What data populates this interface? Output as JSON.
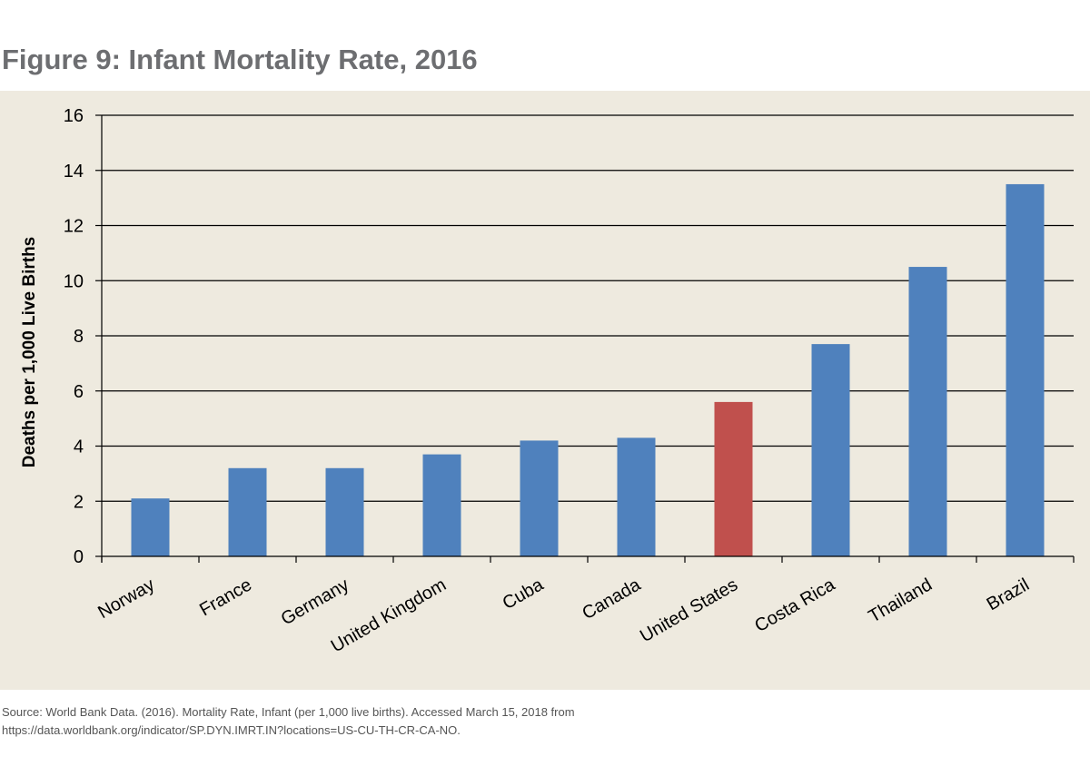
{
  "title": "Figure 9: Infant Mortality Rate, 2016",
  "source": {
    "line1": "Source: World Bank Data. (2016). Mortality Rate, Infant (per 1,000 live births). Accessed March 15, 2018 from",
    "line2": "https://data.worldbank.org/indicator/SP.DYN.IMRT.IN?locations=US-CU-TH-CR-CA-NO."
  },
  "colors": {
    "bar": "#4f81bd",
    "highlight": "#c0504d",
    "background": "#eeeadf",
    "gridline": "#000000"
  },
  "chart_data": {
    "type": "bar",
    "title": "Figure 9: Infant Mortality Rate, 2016",
    "xlabel": "",
    "ylabel": "Deaths per 1,000 Live Births",
    "categories": [
      "Norway",
      "France",
      "Germany",
      "United Kingdom",
      "Cuba",
      "Canada",
      "United States",
      "Costa Rica",
      "Thailand",
      "Brazil"
    ],
    "values": [
      2.1,
      3.2,
      3.2,
      3.7,
      4.2,
      4.3,
      5.6,
      7.7,
      10.5,
      13.5
    ],
    "highlight": "United States",
    "ylim": [
      0,
      16
    ],
    "yticks": [
      0,
      2,
      4,
      6,
      8,
      10,
      12,
      14,
      16
    ],
    "grid": true,
    "legend": "none"
  }
}
